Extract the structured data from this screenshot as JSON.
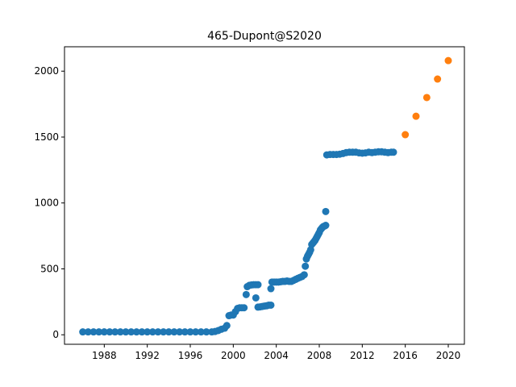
{
  "chart_data": {
    "type": "scatter",
    "title": "465-Dupont@S2020",
    "xlabel": "",
    "ylabel": "",
    "xlim": [
      1984.3,
      2021.5
    ],
    "ylim": [
      -72,
      2185
    ],
    "x_ticks": [
      "1988",
      "1992",
      "1996",
      "2000",
      "2004",
      "2008",
      "2012",
      "2016",
      "2020"
    ],
    "y_ticks": [
      "0",
      "500",
      "1000",
      "1500",
      "2000"
    ],
    "grid": false,
    "legend": "none",
    "series": [
      {
        "color": "#1f77b4",
        "points": [
          [
            1986.0,
            22
          ],
          [
            1986.5,
            22
          ],
          [
            1987.0,
            22
          ],
          [
            1987.5,
            22
          ],
          [
            1988.0,
            22
          ],
          [
            1988.5,
            22
          ],
          [
            1989.0,
            22
          ],
          [
            1989.5,
            22
          ],
          [
            1990.0,
            22
          ],
          [
            1990.5,
            22
          ],
          [
            1991.0,
            22
          ],
          [
            1991.5,
            22
          ],
          [
            1992.0,
            22
          ],
          [
            1992.5,
            22
          ],
          [
            1993.0,
            22
          ],
          [
            1993.5,
            22
          ],
          [
            1994.0,
            22
          ],
          [
            1994.5,
            22
          ],
          [
            1995.0,
            22
          ],
          [
            1995.5,
            22
          ],
          [
            1996.0,
            22
          ],
          [
            1996.5,
            22
          ],
          [
            1997.0,
            22
          ],
          [
            1997.5,
            22
          ],
          [
            1998.0,
            22
          ],
          [
            1998.3,
            25
          ],
          [
            1998.6,
            32
          ],
          [
            1998.9,
            42
          ],
          [
            1999.2,
            50
          ],
          [
            1999.4,
            70
          ],
          [
            1999.6,
            145
          ],
          [
            1999.8,
            150
          ],
          [
            2000.0,
            150
          ],
          [
            2000.2,
            175
          ],
          [
            2000.4,
            200
          ],
          [
            2000.6,
            205
          ],
          [
            2000.8,
            205
          ],
          [
            2001.0,
            205
          ],
          [
            2001.2,
            305
          ],
          [
            2001.3,
            365
          ],
          [
            2001.5,
            375
          ],
          [
            2001.7,
            378
          ],
          [
            2001.9,
            380
          ],
          [
            2002.1,
            380
          ],
          [
            2002.3,
            380
          ],
          [
            2002.1,
            280
          ],
          [
            2002.3,
            210
          ],
          [
            2002.5,
            212
          ],
          [
            2002.7,
            215
          ],
          [
            2002.9,
            218
          ],
          [
            2003.1,
            220
          ],
          [
            2003.3,
            225
          ],
          [
            2003.5,
            225
          ],
          [
            2003.5,
            350
          ],
          [
            2003.6,
            400
          ],
          [
            2003.8,
            400
          ],
          [
            2004.0,
            400
          ],
          [
            2004.2,
            400
          ],
          [
            2004.4,
            402
          ],
          [
            2004.6,
            405
          ],
          [
            2004.8,
            405
          ],
          [
            2005.0,
            408
          ],
          [
            2005.2,
            405
          ],
          [
            2005.4,
            405
          ],
          [
            2005.6,
            412
          ],
          [
            2005.8,
            420
          ],
          [
            2006.0,
            428
          ],
          [
            2006.2,
            435
          ],
          [
            2006.4,
            442
          ],
          [
            2006.6,
            455
          ],
          [
            2006.7,
            520
          ],
          [
            2006.8,
            575
          ],
          [
            2006.9,
            595
          ],
          [
            2007.0,
            610
          ],
          [
            2007.1,
            625
          ],
          [
            2007.2,
            645
          ],
          [
            2007.3,
            685
          ],
          [
            2007.4,
            695
          ],
          [
            2007.5,
            705
          ],
          [
            2007.6,
            715
          ],
          [
            2007.7,
            730
          ],
          [
            2007.8,
            745
          ],
          [
            2007.9,
            760
          ],
          [
            2008.0,
            775
          ],
          [
            2008.1,
            795
          ],
          [
            2008.2,
            805
          ],
          [
            2008.3,
            815
          ],
          [
            2008.4,
            822
          ],
          [
            2008.5,
            825
          ],
          [
            2008.6,
            830
          ],
          [
            2008.6,
            935
          ],
          [
            2008.7,
            1365
          ],
          [
            2009.0,
            1368
          ],
          [
            2009.3,
            1368
          ],
          [
            2009.6,
            1368
          ],
          [
            2009.9,
            1370
          ],
          [
            2010.2,
            1375
          ],
          [
            2010.5,
            1382
          ],
          [
            2010.8,
            1385
          ],
          [
            2011.1,
            1385
          ],
          [
            2011.4,
            1385
          ],
          [
            2011.7,
            1380
          ],
          [
            2012.0,
            1378
          ],
          [
            2012.3,
            1380
          ],
          [
            2012.6,
            1385
          ],
          [
            2012.9,
            1382
          ],
          [
            2013.2,
            1385
          ],
          [
            2013.5,
            1388
          ],
          [
            2013.8,
            1388
          ],
          [
            2014.1,
            1385
          ],
          [
            2014.4,
            1382
          ],
          [
            2014.7,
            1385
          ],
          [
            2014.9,
            1385
          ]
        ]
      },
      {
        "color": "#ff7f0e",
        "points": [
          [
            2016.0,
            1518
          ],
          [
            2017.0,
            1658
          ],
          [
            2018.0,
            1800
          ],
          [
            2019.0,
            1940
          ],
          [
            2020.0,
            2080
          ]
        ]
      }
    ]
  }
}
